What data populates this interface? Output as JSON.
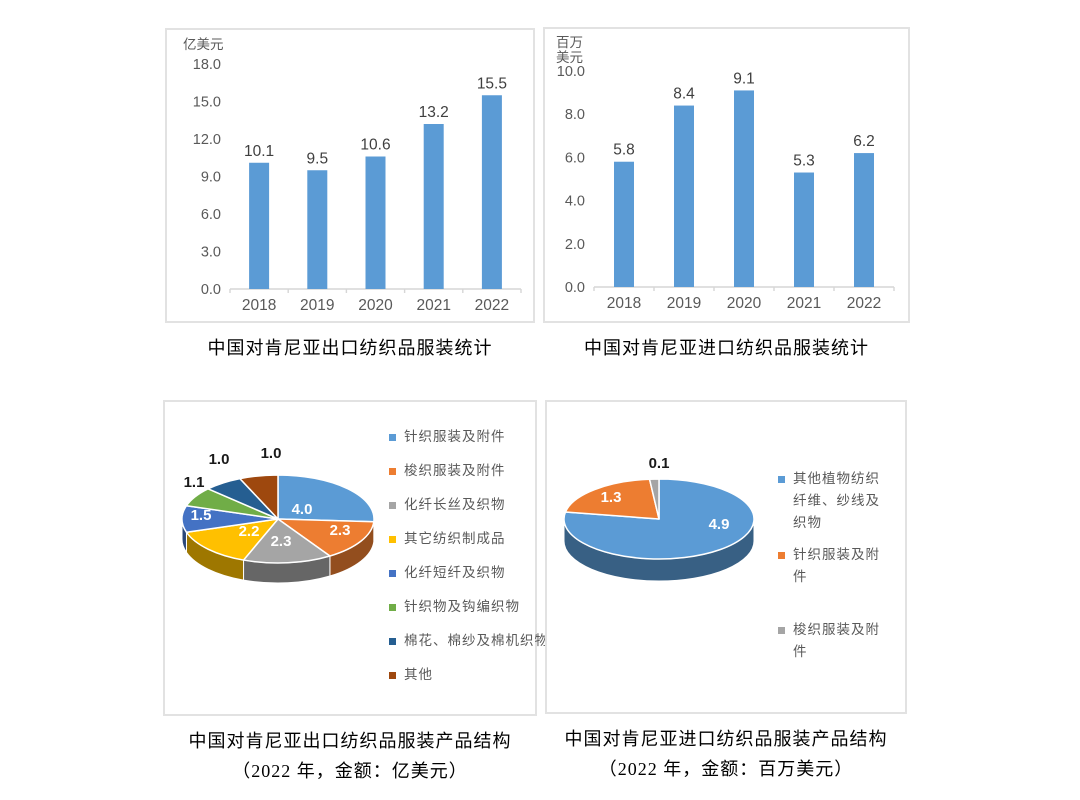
{
  "chart_data": [
    {
      "id": "export-bar",
      "type": "bar",
      "title": "中国对肯尼亚出口纺织品服装统计",
      "unit_label_lines": [
        "亿美元"
      ],
      "categories": [
        "2018",
        "2019",
        "2020",
        "2021",
        "2022"
      ],
      "values": [
        10.1,
        9.5,
        10.6,
        13.2,
        15.5
      ],
      "ylim": [
        0,
        18
      ],
      "yticks": [
        0.0,
        3.0,
        6.0,
        9.0,
        12.0,
        15.0,
        18.0
      ],
      "bar_color": "#5B9BD5",
      "axis_color": "#d6d6d6",
      "grid": false,
      "legend_position": "none"
    },
    {
      "id": "import-bar",
      "type": "bar",
      "title": "中国对肯尼亚进口纺织品服装统计",
      "unit_label_lines": [
        "百万",
        "美元"
      ],
      "categories": [
        "2018",
        "2019",
        "2020",
        "2021",
        "2022"
      ],
      "values": [
        5.8,
        8.4,
        9.1,
        5.3,
        6.2
      ],
      "ylim": [
        0,
        10
      ],
      "yticks": [
        0.0,
        2.0,
        4.0,
        6.0,
        8.0,
        10.0
      ],
      "bar_color": "#5B9BD5",
      "axis_color": "#d6d6d6",
      "grid": false,
      "legend_position": "none"
    },
    {
      "id": "export-pie",
      "type": "pie",
      "three_d": true,
      "title": "中国对肯尼亚出口纺织品服装产品结构",
      "subtitle": "（2022 年，金额：亿美元）",
      "start_angle_deg": 0,
      "direction": "clockwise",
      "legend_position": "right",
      "slices": [
        {
          "label": "针织服装及附件",
          "value": 4.0,
          "color": "#5B9BD5",
          "label_inside": true,
          "label_pos": [
            137,
            112
          ]
        },
        {
          "label": "梭织服装及附件",
          "value": 2.3,
          "color": "#ED7D31",
          "label_inside": true,
          "label_pos": [
            175,
            133
          ]
        },
        {
          "label": "化纤长丝及织物",
          "value": 2.3,
          "color": "#A5A5A5",
          "label_inside": true,
          "label_pos": [
            116,
            144
          ]
        },
        {
          "label": "其它纺织制成品",
          "value": 2.2,
          "color": "#FFC000",
          "label_inside": true,
          "label_pos": [
            84,
            134
          ]
        },
        {
          "label": "化纤短纤及织物",
          "value": 1.5,
          "color": "#4472C4",
          "label_inside": true,
          "label_pos": [
            36,
            118
          ]
        },
        {
          "label": "针织物及钩编织物",
          "value": 1.1,
          "color": "#70AD47",
          "label_inside": false,
          "label_pos": [
            29,
            85
          ]
        },
        {
          "label": "棉花、棉纱及棉机织物",
          "value": 1.0,
          "color": "#255E91",
          "label_inside": false,
          "label_pos": [
            54,
            62
          ]
        },
        {
          "label": "其他",
          "value": 1.0,
          "color": "#9E480E",
          "label_inside": false,
          "label_pos": [
            106,
            56
          ]
        }
      ]
    },
    {
      "id": "import-pie",
      "type": "pie",
      "three_d": true,
      "title": "中国对肯尼亚进口纺织品服装产品结构",
      "subtitle": "（2022 年，金额：百万美元）",
      "start_angle_deg": 0,
      "direction": "clockwise",
      "legend_position": "right",
      "slices": [
        {
          "label": "其他植物纺织纤维、纱线及织物",
          "value": 4.9,
          "color": "#5B9BD5",
          "label_inside": true,
          "label_pos": [
            172,
            127
          ]
        },
        {
          "label": "针织服装及附件",
          "value": 1.3,
          "color": "#ED7D31",
          "label_inside": true,
          "label_pos": [
            64,
            100
          ]
        },
        {
          "label": "梭织服装及附件",
          "value": 0.1,
          "color": "#A5A5A5",
          "label_inside": false,
          "label_pos": [
            112,
            66
          ]
        }
      ]
    }
  ]
}
